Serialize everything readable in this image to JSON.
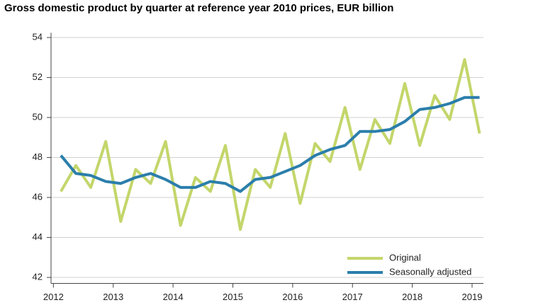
{
  "chart_data": {
    "type": "line",
    "title": "Gross domestic product by quarter at reference year 2010 prices, EUR billion",
    "x": [
      2012.125,
      2012.375,
      2012.625,
      2012.875,
      2013.125,
      2013.375,
      2013.625,
      2013.875,
      2014.125,
      2014.375,
      2014.625,
      2014.875,
      2015.125,
      2015.375,
      2015.625,
      2015.875,
      2016.125,
      2016.375,
      2016.625,
      2016.875,
      2017.125,
      2017.375,
      2017.625,
      2017.875,
      2018.125,
      2018.375,
      2018.625,
      2018.875,
      2019.125
    ],
    "series": [
      {
        "name": "Original",
        "color": "#c3d66b",
        "values": [
          46.3,
          47.6,
          46.5,
          48.8,
          44.8,
          47.4,
          46.7,
          48.8,
          44.6,
          47.0,
          46.3,
          48.6,
          44.4,
          47.4,
          46.5,
          49.2,
          45.7,
          48.7,
          47.8,
          50.5,
          47.4,
          49.9,
          48.7,
          51.7,
          48.6,
          51.1,
          49.9,
          52.9,
          49.2
        ]
      },
      {
        "name": "Seasonally adjusted",
        "color": "#2b7eab",
        "values": [
          48.1,
          47.2,
          47.1,
          46.8,
          46.7,
          47.0,
          47.2,
          46.9,
          46.5,
          46.5,
          46.8,
          46.7,
          46.3,
          46.9,
          47.0,
          47.3,
          47.6,
          48.1,
          48.4,
          48.6,
          49.3,
          49.3,
          49.4,
          49.8,
          50.4,
          50.5,
          50.7,
          51.0,
          51.0
        ]
      }
    ],
    "xlim": [
      2011.96,
      2019.19
    ],
    "xticks": [
      2012,
      2013,
      2014,
      2015,
      2016,
      2017,
      2018,
      2019
    ],
    "ylim": [
      41.7,
      54.1
    ],
    "yticks": [
      42,
      44,
      46,
      48,
      50,
      52,
      54
    ],
    "grid": true,
    "legend": "lower right"
  }
}
